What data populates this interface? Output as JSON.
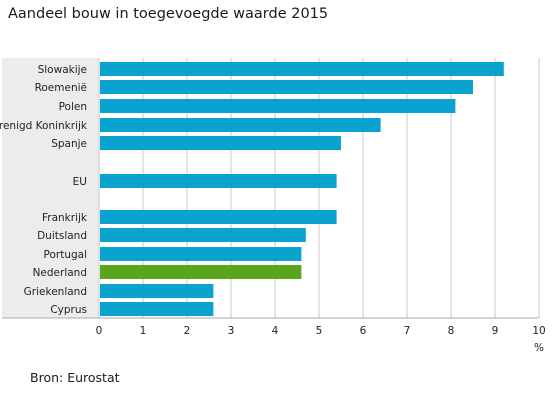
{
  "chart_data": {
    "type": "bar",
    "orientation": "horizontal",
    "title": "Aandeel bouw in toegevoegde waarde 2015",
    "xlabel": "%",
    "xlim": [
      0,
      10
    ],
    "xticks": [
      "0",
      "1",
      "2",
      "3",
      "4",
      "5",
      "6",
      "7",
      "8",
      "9",
      "10"
    ],
    "grid": true,
    "categories": [
      "Slowakije",
      "Roemenië",
      "Polen",
      "Verenigd Koninkrijk",
      "Spanje",
      "EU",
      "Frankrijk",
      "Duitsland",
      "Portugal",
      "Nederland",
      "Griekenland",
      "Cyprus"
    ],
    "values": [
      9.2,
      8.5,
      8.1,
      6.4,
      5.5,
      5.4,
      5.4,
      4.7,
      4.6,
      4.6,
      2.6,
      2.6
    ],
    "colors": {
      "default": "#0aa3d0",
      "highlight": "#5aa51d",
      "highlight_category": "Nederland",
      "label_panel": "#ececec",
      "grid": "#c8c8c8"
    }
  },
  "footer": {
    "source": "Bron: Eurostat"
  }
}
